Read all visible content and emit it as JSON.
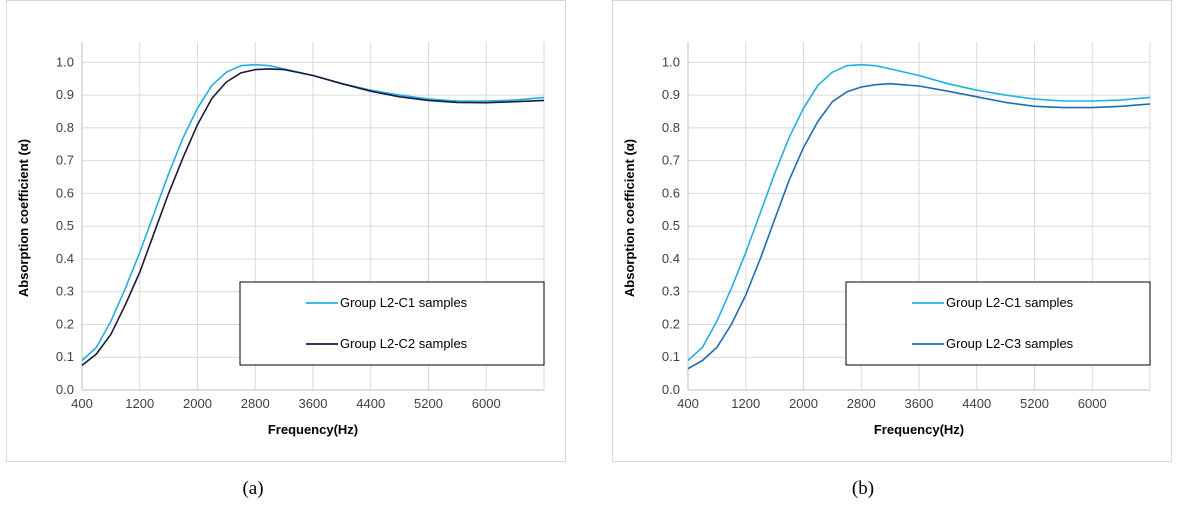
{
  "chart_data": [
    {
      "type": "line",
      "xlabel": "Frequency(Hz)",
      "ylabel": "Absorption coefficient (α)",
      "xlim": [
        400,
        6800
      ],
      "ylim": [
        0.0,
        1.05
      ],
      "xticks": [
        400,
        1200,
        2000,
        2800,
        3600,
        4400,
        5200,
        6000
      ],
      "yticks": [
        0.0,
        0.1,
        0.2,
        0.3,
        0.4,
        0.5,
        0.6,
        0.7,
        0.8,
        0.9,
        1.0
      ],
      "grid": true,
      "legend_position": "lower-right",
      "caption": "(a)",
      "series": [
        {
          "name": "Group L2-C1 samples",
          "color": "#22b0e0",
          "x": [
            400,
            600,
            800,
            1000,
            1200,
            1400,
            1600,
            1800,
            2000,
            2200,
            2400,
            2600,
            2800,
            3000,
            3200,
            3600,
            4000,
            4400,
            4800,
            5200,
            5600,
            6000,
            6400,
            6800
          ],
          "y": [
            0.09,
            0.13,
            0.21,
            0.31,
            0.42,
            0.54,
            0.66,
            0.77,
            0.86,
            0.93,
            0.97,
            0.99,
            0.993,
            0.99,
            0.98,
            0.96,
            0.935,
            0.915,
            0.9,
            0.888,
            0.882,
            0.882,
            0.885,
            0.893
          ]
        },
        {
          "name": "Group L2-C2 samples",
          "color": "#1a1a40",
          "x": [
            400,
            600,
            800,
            1000,
            1200,
            1400,
            1600,
            1800,
            2000,
            2200,
            2400,
            2600,
            2800,
            3000,
            3200,
            3600,
            4000,
            4400,
            4800,
            5200,
            5600,
            6000,
            6400,
            6800
          ],
          "y": [
            0.075,
            0.11,
            0.17,
            0.26,
            0.36,
            0.48,
            0.6,
            0.71,
            0.81,
            0.89,
            0.94,
            0.968,
            0.978,
            0.98,
            0.978,
            0.96,
            0.935,
            0.912,
            0.895,
            0.884,
            0.878,
            0.877,
            0.88,
            0.884
          ]
        }
      ]
    },
    {
      "type": "line",
      "xlabel": "Frequency(Hz)",
      "ylabel": "Absorption coefficient (α)",
      "xlim": [
        400,
        6800
      ],
      "ylim": [
        0.0,
        1.05
      ],
      "xticks": [
        400,
        1200,
        2000,
        2800,
        3600,
        4400,
        5200,
        6000
      ],
      "yticks": [
        0.0,
        0.1,
        0.2,
        0.3,
        0.4,
        0.5,
        0.6,
        0.7,
        0.8,
        0.9,
        1.0
      ],
      "grid": true,
      "legend_position": "lower-right",
      "caption": "(b)",
      "series": [
        {
          "name": "Group L2-C1 samples",
          "color": "#22b0e0",
          "x": [
            400,
            600,
            800,
            1000,
            1200,
            1400,
            1600,
            1800,
            2000,
            2200,
            2400,
            2600,
            2800,
            3000,
            3200,
            3600,
            4000,
            4400,
            4800,
            5200,
            5600,
            6000,
            6400,
            6800
          ],
          "y": [
            0.09,
            0.13,
            0.21,
            0.31,
            0.42,
            0.54,
            0.66,
            0.77,
            0.86,
            0.93,
            0.97,
            0.99,
            0.993,
            0.99,
            0.98,
            0.96,
            0.935,
            0.915,
            0.9,
            0.888,
            0.882,
            0.882,
            0.885,
            0.893
          ]
        },
        {
          "name": "Group L2-C3 samples",
          "color": "#1f6cb0",
          "x": [
            400,
            600,
            800,
            1000,
            1200,
            1400,
            1600,
            1800,
            2000,
            2200,
            2400,
            2600,
            2800,
            3000,
            3200,
            3600,
            4000,
            4400,
            4800,
            5200,
            5600,
            6000,
            6400,
            6800
          ],
          "y": [
            0.065,
            0.09,
            0.13,
            0.2,
            0.29,
            0.4,
            0.52,
            0.64,
            0.74,
            0.82,
            0.88,
            0.91,
            0.925,
            0.932,
            0.935,
            0.928,
            0.912,
            0.895,
            0.878,
            0.866,
            0.862,
            0.862,
            0.866,
            0.873
          ]
        }
      ]
    }
  ]
}
